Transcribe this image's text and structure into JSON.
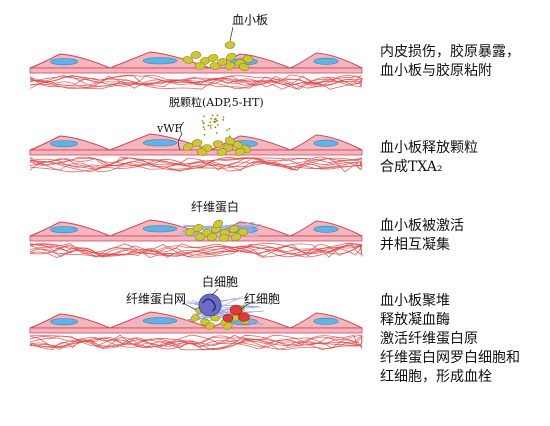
{
  "stages": [
    {
      "id": "stage-1",
      "labels": [
        "血小板"
      ],
      "description": [
        "内皮损伤，胶原暴露，",
        "血小板与胶原粘附"
      ]
    },
    {
      "id": "stage-2",
      "labels": [
        "脱颗粒(ADP,5-HT)",
        "vWF"
      ],
      "description": [
        "血小板释放颗粒",
        "合成TXA₂"
      ]
    },
    {
      "id": "stage-3",
      "labels": [
        "纤维蛋白"
      ],
      "description": [
        "血小板被激活",
        "并相互凝集"
      ]
    },
    {
      "id": "stage-4",
      "labels": [
        "白细胞",
        "纤维蛋白网",
        "红细胞"
      ],
      "description": [
        "血小板聚堆",
        "释放凝血酶",
        "激活纤维蛋白原",
        "纤维蛋白网罗白细胞和",
        "红细胞，形成血栓"
      ]
    }
  ],
  "colors": {
    "endothelium_fill": "#f4b6bc",
    "endothelium_stroke": "#d0455a",
    "nucleus": "#5fb3e6",
    "collagen": "#e04a4a",
    "platelet": "#cfc637",
    "platelet_dark": "#8f8a18",
    "fibrin": "#9aa8e0",
    "leukocyte": "#6b6cc9",
    "erythrocyte": "#e0393c"
  }
}
